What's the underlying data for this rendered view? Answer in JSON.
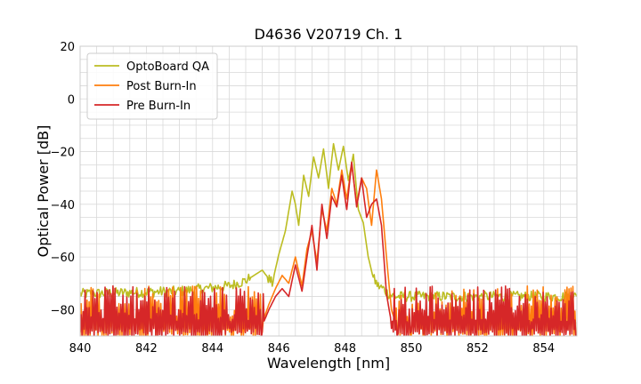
{
  "chart_data": {
    "type": "line",
    "title": "D4636 V20719 Ch. 1",
    "xlabel": "Wavelength [nm]",
    "ylabel": "Optical Power [dB]",
    "xlim": [
      840,
      855
    ],
    "ylim": [
      -90,
      20
    ],
    "xticks": [
      840,
      842,
      844,
      846,
      848,
      850,
      852,
      854
    ],
    "yticks": [
      20,
      0,
      -20,
      -40,
      -60,
      -80
    ],
    "grid": true,
    "legend": "top-left",
    "noise_floor": [
      -91,
      -71
    ],
    "series": [
      {
        "name": "OptoBoard QA",
        "color": "#bcbd22",
        "x": [
          840.0,
          843.0,
          844.5,
          845.0,
          845.5,
          845.8,
          846.0,
          846.2,
          846.4,
          846.5,
          846.6,
          846.75,
          846.9,
          847.05,
          847.2,
          847.35,
          847.5,
          847.65,
          847.8,
          847.95,
          848.1,
          848.25,
          848.4,
          848.55,
          848.7,
          848.85,
          849.0,
          849.15,
          849.3,
          849.5,
          850.0,
          855.0
        ],
        "values": [
          -74,
          -73,
          -71,
          -69,
          -65,
          -70,
          -59,
          -50,
          -35,
          -40,
          -48,
          -29,
          -37,
          -22,
          -30,
          -19,
          -34,
          -17,
          -27,
          -18,
          -31,
          -21,
          -42,
          -47,
          -60,
          -68,
          -71,
          -72,
          -74,
          -75,
          -75,
          -75
        ]
      },
      {
        "name": "Post Burn-In",
        "color": "#ff7f0e",
        "x": [
          840.0,
          845.5,
          845.7,
          845.9,
          846.1,
          846.3,
          846.5,
          846.7,
          846.85,
          847.0,
          847.15,
          847.3,
          847.45,
          847.6,
          847.75,
          847.9,
          848.05,
          848.2,
          848.35,
          848.5,
          848.65,
          848.8,
          848.95,
          849.1,
          849.25,
          849.4,
          849.6,
          850.0,
          855.0
        ],
        "values": [
          -91,
          -85,
          -78,
          -72,
          -67,
          -70,
          -60,
          -71,
          -57,
          -50,
          -62,
          -42,
          -50,
          -34,
          -40,
          -27,
          -38,
          -25,
          -40,
          -30,
          -34,
          -48,
          -27,
          -38,
          -60,
          -80,
          -88,
          -91,
          -91
        ]
      },
      {
        "name": "Pre Burn-In",
        "color": "#d62728",
        "x": [
          840.0,
          845.5,
          845.7,
          845.9,
          846.1,
          846.3,
          846.5,
          846.7,
          846.85,
          847.0,
          847.15,
          847.3,
          847.45,
          847.6,
          847.75,
          847.9,
          848.05,
          848.2,
          848.35,
          848.5,
          848.65,
          848.8,
          848.95,
          849.1,
          849.25,
          849.4,
          849.6,
          850.0,
          855.0
        ],
        "values": [
          -91,
          -86,
          -80,
          -75,
          -72,
          -75,
          -63,
          -73,
          -60,
          -48,
          -65,
          -40,
          -53,
          -37,
          -41,
          -29,
          -42,
          -24,
          -41,
          -30,
          -45,
          -40,
          -38,
          -48,
          -74,
          -85,
          -89,
          -91,
          -91
        ]
      }
    ]
  }
}
